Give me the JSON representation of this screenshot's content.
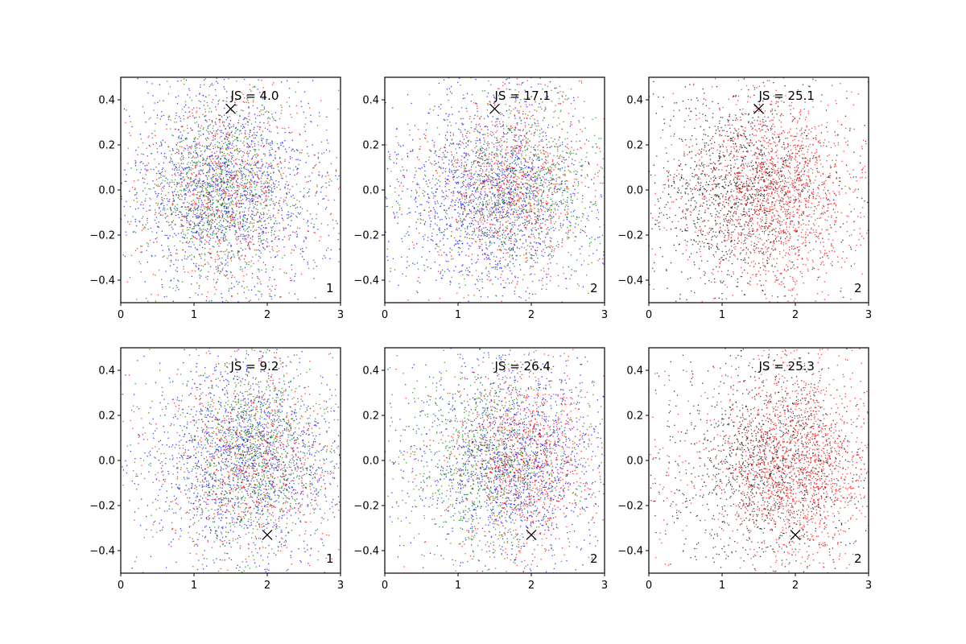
{
  "chart_data": [
    {
      "type": "scatter",
      "row": 1,
      "col": 1,
      "title": "",
      "xlabel": "",
      "ylabel": "",
      "xlim": [
        0,
        3
      ],
      "ylim": [
        -0.5,
        0.5
      ],
      "xticks": [
        0,
        1,
        2,
        3
      ],
      "xtick_labels": [
        "0",
        "1",
        "2",
        "3"
      ],
      "yticks": [
        -0.4,
        -0.2,
        0.0,
        0.2,
        0.4
      ],
      "ytick_labels": [
        "−0.4",
        "−0.2",
        "0.0",
        "0.2",
        "0.4"
      ],
      "annotation": "JS = 4.0",
      "corner_label": "1",
      "marker": {
        "x": 1.5,
        "y": 0.36,
        "symbol": "x",
        "color": "#000000"
      },
      "series": [
        {
          "color": "#0000ff",
          "point_count": 1400,
          "x_center": 1.4,
          "x_spread": 0.6,
          "y_center": 0.0,
          "y_spread": 0.2
        },
        {
          "color": "#008000",
          "point_count": 1100,
          "x_center": 1.35,
          "x_spread": 0.5,
          "y_center": 0.0,
          "y_spread": 0.19
        },
        {
          "color": "#ff0000",
          "point_count": 900,
          "x_center": 1.45,
          "x_spread": 0.55,
          "y_center": 0.0,
          "y_spread": 0.2
        }
      ]
    },
    {
      "type": "scatter",
      "row": 1,
      "col": 2,
      "title": "",
      "xlabel": "",
      "ylabel": "",
      "xlim": [
        0,
        3
      ],
      "ylim": [
        -0.5,
        0.5
      ],
      "xticks": [
        0,
        1,
        2,
        3
      ],
      "xtick_labels": [
        "0",
        "1",
        "2",
        "3"
      ],
      "yticks": [
        -0.4,
        -0.2,
        0.0,
        0.2,
        0.4
      ],
      "ytick_labels": [
        "−0.4",
        "−0.2",
        "0.0",
        "0.2",
        "0.4"
      ],
      "annotation": "JS = 17.1",
      "corner_label": "2",
      "marker": {
        "x": 1.5,
        "y": 0.36,
        "symbol": "x",
        "color": "#000000"
      },
      "series": [
        {
          "color": "#0000ff",
          "point_count": 1400,
          "x_center": 1.4,
          "x_spread": 0.55,
          "y_center": -0.02,
          "y_spread": 0.19
        },
        {
          "color": "#008000",
          "point_count": 1000,
          "x_center": 1.85,
          "x_spread": 0.55,
          "y_center": 0.0,
          "y_spread": 0.19
        },
        {
          "color": "#ff0000",
          "point_count": 1000,
          "x_center": 1.75,
          "x_spread": 0.45,
          "y_center": 0.02,
          "y_spread": 0.19
        }
      ]
    },
    {
      "type": "scatter",
      "row": 1,
      "col": 3,
      "title": "",
      "xlabel": "",
      "ylabel": "",
      "xlim": [
        0,
        3
      ],
      "ylim": [
        -0.5,
        0.5
      ],
      "xticks": [
        0,
        1,
        2,
        3
      ],
      "xtick_labels": [
        "0",
        "1",
        "2",
        "3"
      ],
      "yticks": [
        -0.4,
        -0.2,
        0.0,
        0.2,
        0.4
      ],
      "ytick_labels": [
        "−0.4",
        "−0.2",
        "0.0",
        "0.2",
        "0.4"
      ],
      "annotation": "JS = 25.1",
      "corner_label": "2",
      "marker": {
        "x": 1.5,
        "y": 0.36,
        "symbol": "x",
        "color": "#000000"
      },
      "series": [
        {
          "color": "#000000",
          "point_count": 1300,
          "x_center": 1.2,
          "x_spread": 0.6,
          "y_center": 0.0,
          "y_spread": 0.2
        },
        {
          "color": "#ff0000",
          "point_count": 1700,
          "x_center": 1.75,
          "x_spread": 0.5,
          "y_center": 0.0,
          "y_spread": 0.2
        }
      ]
    },
    {
      "type": "scatter",
      "row": 2,
      "col": 1,
      "title": "",
      "xlabel": "",
      "ylabel": "",
      "xlim": [
        0,
        3
      ],
      "ylim": [
        -0.5,
        0.5
      ],
      "xticks": [
        0,
        1,
        2,
        3
      ],
      "xtick_labels": [
        "0",
        "1",
        "2",
        "3"
      ],
      "yticks": [
        -0.4,
        -0.2,
        0.0,
        0.2,
        0.4
      ],
      "ytick_labels": [
        "−0.4",
        "−0.2",
        "0.0",
        "0.2",
        "0.4"
      ],
      "annotation": "JS = 9.2",
      "corner_label": "1",
      "marker": {
        "x": 2.0,
        "y": -0.33,
        "symbol": "x",
        "color": "#000000"
      },
      "series": [
        {
          "color": "#0000ff",
          "point_count": 1400,
          "x_center": 1.7,
          "x_spread": 0.6,
          "y_center": 0.0,
          "y_spread": 0.2
        },
        {
          "color": "#008000",
          "point_count": 1100,
          "x_center": 1.8,
          "x_spread": 0.5,
          "y_center": 0.02,
          "y_spread": 0.19
        },
        {
          "color": "#ff0000",
          "point_count": 900,
          "x_center": 1.75,
          "x_spread": 0.55,
          "y_center": 0.0,
          "y_spread": 0.2
        }
      ]
    },
    {
      "type": "scatter",
      "row": 2,
      "col": 2,
      "title": "",
      "xlabel": "",
      "ylabel": "",
      "xlim": [
        0,
        3
      ],
      "ylim": [
        -0.5,
        0.5
      ],
      "xticks": [
        0,
        1,
        2,
        3
      ],
      "xtick_labels": [
        "0",
        "1",
        "2",
        "3"
      ],
      "yticks": [
        -0.4,
        -0.2,
        0.0,
        0.2,
        0.4
      ],
      "ytick_labels": [
        "−0.4",
        "−0.2",
        "0.0",
        "0.2",
        "0.4"
      ],
      "annotation": "JS = 26.4",
      "corner_label": "2",
      "marker": {
        "x": 2.0,
        "y": -0.33,
        "symbol": "x",
        "color": "#000000"
      },
      "series": [
        {
          "color": "#0000ff",
          "point_count": 1300,
          "x_center": 1.75,
          "x_spread": 0.55,
          "y_center": 0.0,
          "y_spread": 0.19
        },
        {
          "color": "#008000",
          "point_count": 1000,
          "x_center": 1.4,
          "x_spread": 0.5,
          "y_center": 0.0,
          "y_spread": 0.19
        },
        {
          "color": "#ff0000",
          "point_count": 1100,
          "x_center": 1.9,
          "x_spread": 0.45,
          "y_center": 0.0,
          "y_spread": 0.19
        }
      ]
    },
    {
      "type": "scatter",
      "row": 2,
      "col": 3,
      "title": "",
      "xlabel": "",
      "ylabel": "",
      "xlim": [
        0,
        3
      ],
      "ylim": [
        -0.5,
        0.5
      ],
      "xticks": [
        0,
        1,
        2,
        3
      ],
      "xtick_labels": [
        "0",
        "1",
        "2",
        "3"
      ],
      "yticks": [
        -0.4,
        -0.2,
        0.0,
        0.2,
        0.4
      ],
      "ytick_labels": [
        "−0.4",
        "−0.2",
        "0.0",
        "0.2",
        "0.4"
      ],
      "annotation": "JS = 25.3",
      "corner_label": "2",
      "marker": {
        "x": 2.0,
        "y": -0.33,
        "symbol": "x",
        "color": "#000000"
      },
      "series": [
        {
          "color": "#000000",
          "point_count": 1200,
          "x_center": 1.55,
          "x_spread": 0.6,
          "y_center": 0.0,
          "y_spread": 0.2
        },
        {
          "color": "#ff0000",
          "point_count": 1800,
          "x_center": 2.0,
          "x_spread": 0.5,
          "y_center": -0.02,
          "y_spread": 0.19
        }
      ]
    }
  ]
}
